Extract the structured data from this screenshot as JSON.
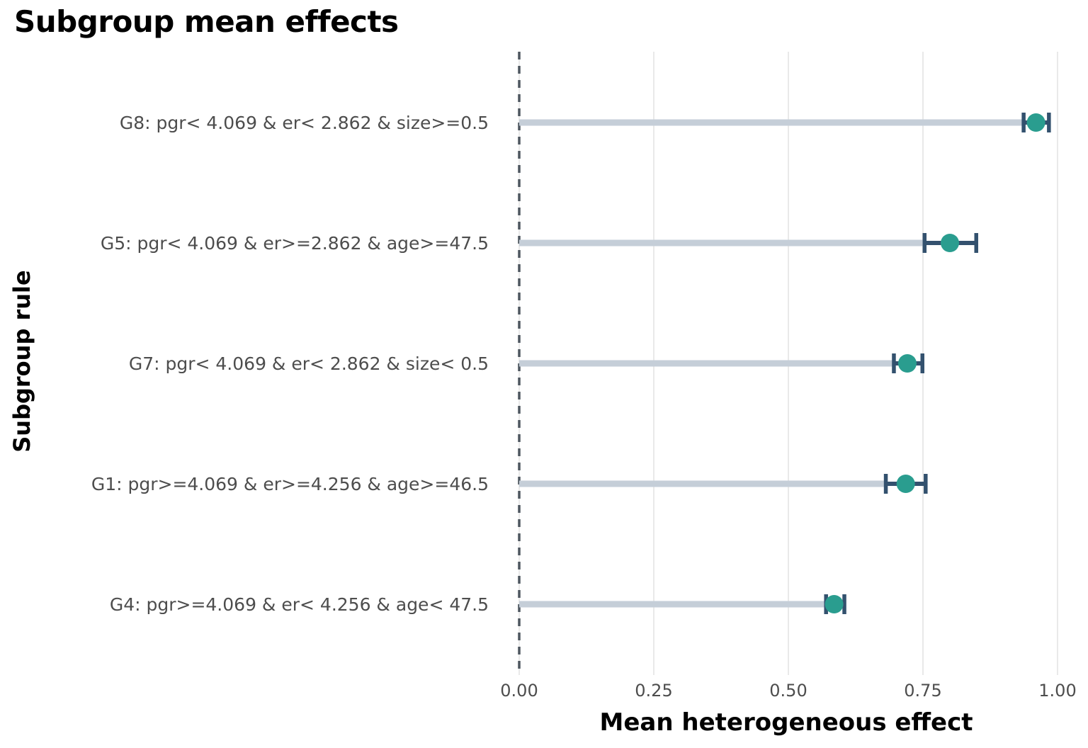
{
  "title": "Subgroup mean effects",
  "chart_data": {
    "type": "scatter",
    "subtype": "horizontal-lollipop-with-error-bars",
    "title": "Subgroup mean effects",
    "xlabel": "Mean heterogeneous effect",
    "ylabel": "Subgroup rule",
    "xlim": [
      0,
      1.02
    ],
    "x_ticks": [
      0,
      0.25,
      0.5,
      0.75,
      1.0
    ],
    "x_tick_labels": [
      "0.00",
      "0.25",
      "0.50",
      "0.75",
      "1.00"
    ],
    "reference_line_x": 0,
    "grid": "vertical-only",
    "legend": "none",
    "rows": [
      {
        "label": "G8: pgr< 4.069 & er< 2.862 & size>=0.5",
        "mean": 0.96,
        "ci_low": 0.937,
        "ci_high": 0.984
      },
      {
        "label": "G5: pgr< 4.069 & er>=2.862 & age>=47.5",
        "mean": 0.8,
        "ci_low": 0.753,
        "ci_high": 0.849
      },
      {
        "label": "G7: pgr< 4.069 & er< 2.862 & size< 0.5",
        "mean": 0.721,
        "ci_low": 0.696,
        "ci_high": 0.749
      },
      {
        "label": "G1: pgr>=4.069 & er>=4.256 & age>=46.5",
        "mean": 0.718,
        "ci_low": 0.681,
        "ci_high": 0.755
      },
      {
        "label": "G4: pgr>=4.069 & er< 4.256 & age< 47.5",
        "mean": 0.585,
        "ci_low": 0.57,
        "ci_high": 0.604
      }
    ],
    "colors": {
      "dot": "#2a9d8f",
      "errorbar": "#33516e",
      "stem": "#c5ced8",
      "gridline": "#e9e9e9",
      "reference_line": "#4d565f",
      "tick_label": "#4d4d4d",
      "category_label": "#4d4d4d",
      "title": "#000000"
    }
  }
}
